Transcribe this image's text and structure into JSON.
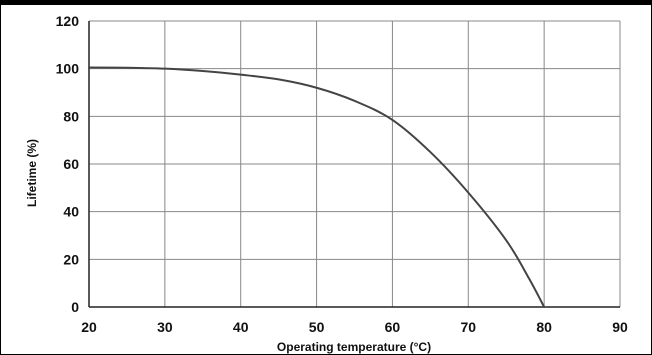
{
  "chart_data": {
    "type": "line",
    "title": "",
    "xlabel": "Operating temperature (°C)",
    "ylabel": "Lifetime (%)",
    "xlim": [
      20,
      90
    ],
    "ylim": [
      0,
      120
    ],
    "x_ticks": [
      20,
      30,
      40,
      50,
      60,
      70,
      80,
      90
    ],
    "y_ticks": [
      0,
      20,
      40,
      60,
      80,
      100,
      120
    ],
    "grid": true,
    "legend": "none",
    "line_color": "#444444",
    "grid_color": "#888888",
    "series": [
      {
        "x": [
          20,
          25,
          30,
          35,
          40,
          45,
          50,
          55,
          60,
          65,
          70,
          75,
          78,
          80
        ],
        "y": [
          100.5,
          100.4,
          100,
          99,
          97.5,
          95.5,
          92,
          86.5,
          78.5,
          65,
          48,
          28,
          12,
          0
        ]
      }
    ]
  }
}
